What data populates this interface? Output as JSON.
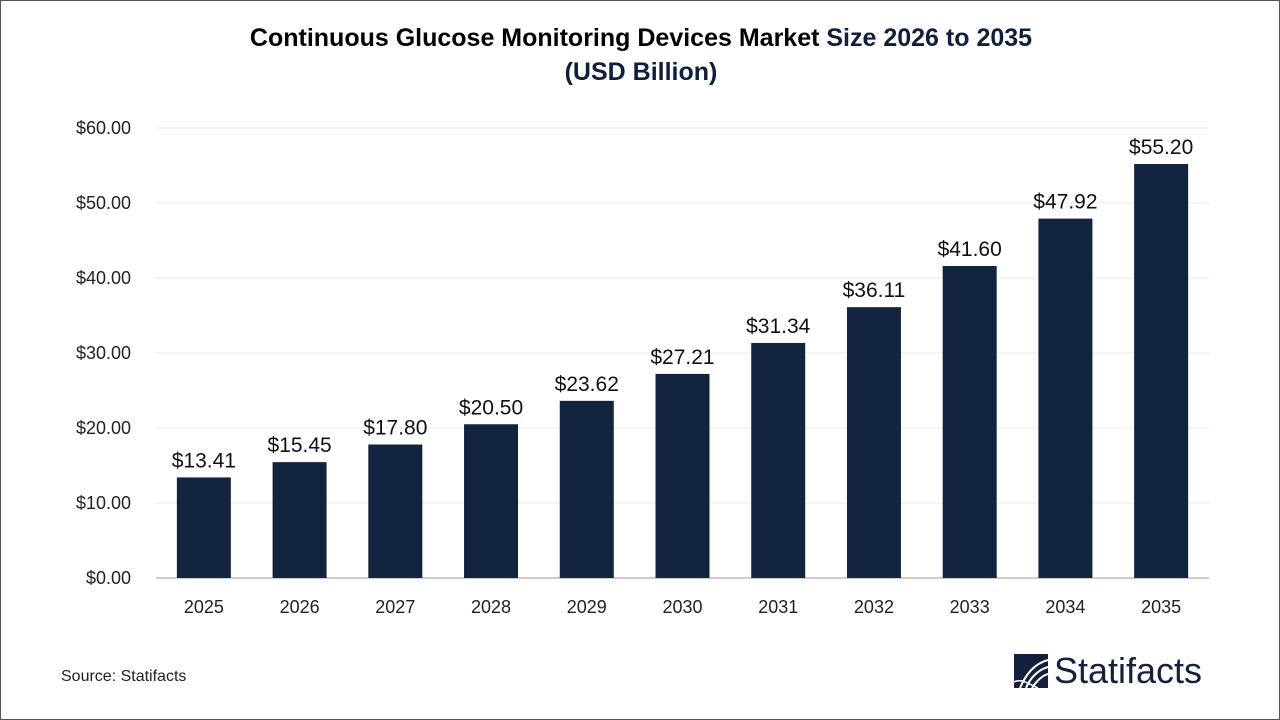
{
  "title_part1": "Continuous Glucose Monitoring Devices Market ",
  "title_part2": "Size 2026 to 2035",
  "title_line2": "(USD Billion)",
  "source": "Source: Statifacts",
  "logo_text": "Statifacts",
  "colors": {
    "bar": "#13243f",
    "title_accent": "#0f1e3c",
    "grid": "#e8e8e8"
  },
  "chart_data": {
    "type": "bar",
    "title": "Continuous Glucose Monitoring Devices Market Size 2026 to 2035 (USD Billion)",
    "categories": [
      "2025",
      "2026",
      "2027",
      "2028",
      "2029",
      "2030",
      "2031",
      "2032",
      "2033",
      "2034",
      "2035"
    ],
    "values": [
      13.41,
      15.45,
      17.8,
      20.5,
      23.62,
      27.21,
      31.34,
      36.11,
      41.6,
      47.92,
      55.2
    ],
    "data_labels": [
      "$13.41",
      "$15.45",
      "$17.80",
      "$20.50",
      "$23.62",
      "$27.21",
      "$31.34",
      "$36.11",
      "$41.60",
      "$47.92",
      "$55.20"
    ],
    "yticks": [
      0,
      10,
      20,
      30,
      40,
      50,
      60
    ],
    "ytick_labels": [
      "$0.00",
      "$10.00",
      "$20.00",
      "$30.00",
      "$40.00",
      "$50.00",
      "$60.00"
    ],
    "ylim": [
      0,
      60
    ],
    "xlabel": "",
    "ylabel": "",
    "grid": true,
    "legend": "none"
  }
}
